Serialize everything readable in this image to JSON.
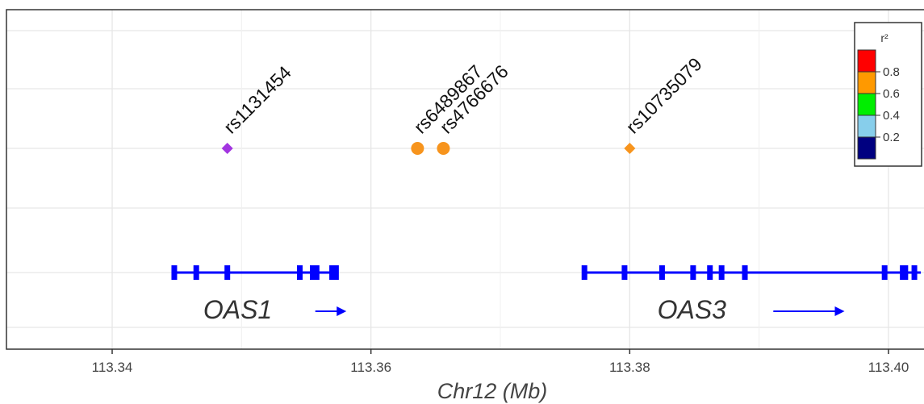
{
  "chart_data": {
    "type": "scatter",
    "xlabel": "Chr12 (Mb)",
    "ylabel": "",
    "xlim": [
      113.332,
      113.4025
    ],
    "x_ticks": [
      {
        "value": 113.34,
        "label": "113.34"
      },
      {
        "value": 113.36,
        "label": "113.36"
      },
      {
        "value": 113.38,
        "label": "113.38"
      },
      {
        "value": 113.4,
        "label": "113.40"
      }
    ],
    "points": [
      {
        "name": "rs1131454",
        "x": 113.3489,
        "shape": "diamond",
        "color": "#a235e0"
      },
      {
        "name": "rs6489867",
        "x": 113.3636,
        "shape": "circle",
        "color": "#f7941d"
      },
      {
        "name": "rs4766676",
        "x": 113.3656,
        "shape": "circle",
        "color": "#f7941d"
      },
      {
        "name": "rs10735079",
        "x": 113.38,
        "shape": "diamond",
        "color": "#f7941d"
      }
    ],
    "genes": [
      {
        "name": "OAS1",
        "start": 113.3447,
        "end": 113.3574,
        "exons": [
          113.3448,
          113.3465,
          113.3489,
          113.3545,
          113.3555,
          113.3558,
          113.357,
          113.3573
        ],
        "label_x": 113.3497,
        "arrow_from": 113.3557,
        "arrow_to": 113.3581
      },
      {
        "name": "OAS3",
        "start": 113.3764,
        "end": 113.4025,
        "exons": [
          113.3765,
          113.3796,
          113.3825,
          113.3849,
          113.3862,
          113.3871,
          113.3889,
          113.3997,
          113.4011,
          113.4013,
          113.402
        ],
        "label_x": 113.3848,
        "arrow_from": 113.3911,
        "arrow_to": 113.3966
      }
    ],
    "legend": {
      "title": "r²",
      "placement": "top-right",
      "bins": [
        {
          "label": "0.8",
          "color": "#ff0000"
        },
        {
          "label": "0.6",
          "color": "#ff9900"
        },
        {
          "label": "0.4",
          "color": "#00ee00"
        },
        {
          "label": "0.2",
          "color": "#87ceeb"
        },
        {
          "label": "",
          "color": "#000080"
        }
      ]
    },
    "grid": true,
    "colors": {
      "gene": "#0000ff",
      "grid": "#e6e6e6",
      "axis": "#333333"
    }
  }
}
